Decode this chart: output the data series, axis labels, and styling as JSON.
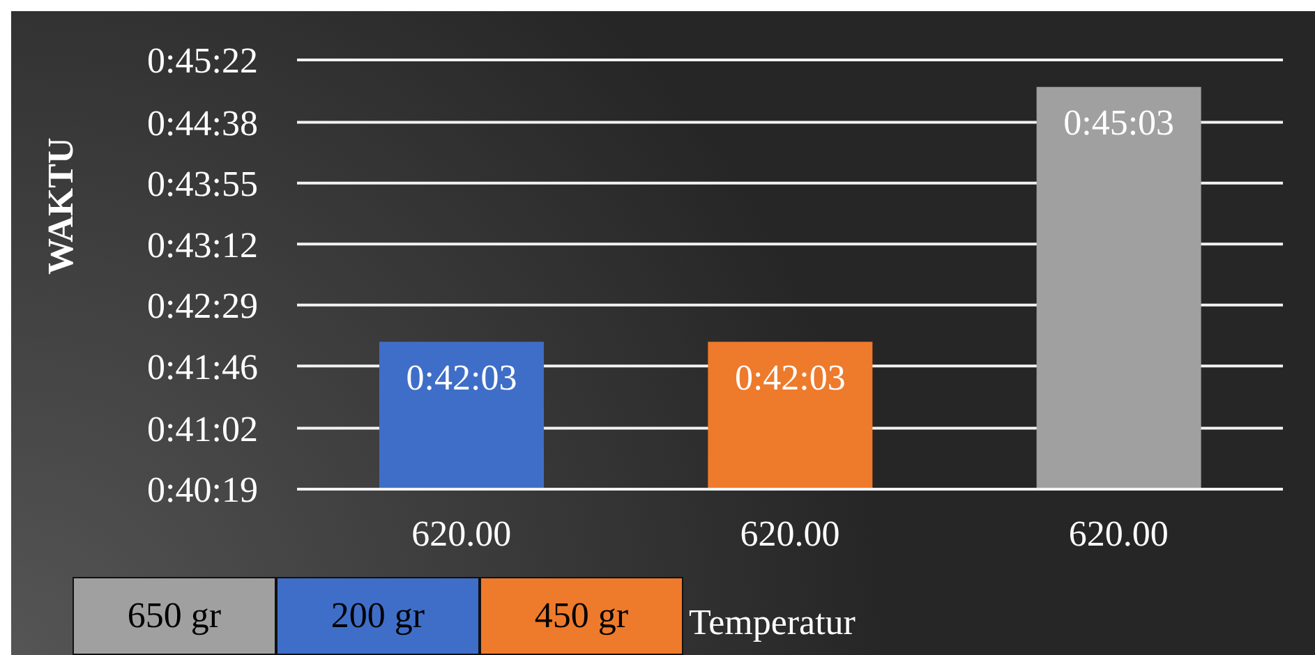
{
  "chart_data": {
    "type": "bar",
    "xlabel": "Temperatur",
    "ylabel": "WAKTU",
    "categories": [
      "620.00",
      "620.00",
      "620.00"
    ],
    "stacked": true,
    "series": [
      {
        "name": "650 gr",
        "color": "#a0a0a0",
        "values": [
          null,
          null,
          2703
        ],
        "value_labels": [
          null,
          null,
          "0:45:03"
        ]
      },
      {
        "name": "200 gr",
        "color": "#3f6ec8",
        "values": [
          2523,
          null,
          null
        ],
        "value_labels": [
          "0:42:03",
          null,
          null
        ]
      },
      {
        "name": "450 gr",
        "color": "#ee7a2b",
        "values": [
          null,
          2523,
          null
        ],
        "value_labels": [
          null,
          "0:42:03",
          null
        ]
      }
    ],
    "ylim": [
      2419,
      2722
    ],
    "yticks": [
      {
        "value": 2419,
        "label": "0:40:19"
      },
      {
        "value": 2462,
        "label": "0:41:02"
      },
      {
        "value": 2506,
        "label": "0:41:46"
      },
      {
        "value": 2549,
        "label": "0:42:29"
      },
      {
        "value": 2592,
        "label": "0:43:12"
      },
      {
        "value": 2635,
        "label": "0:43:55"
      },
      {
        "value": 2678,
        "label": "0:44:38"
      },
      {
        "value": 2722,
        "label": "0:45:22"
      }
    ],
    "grid": "y",
    "legend": "bottom left"
  }
}
